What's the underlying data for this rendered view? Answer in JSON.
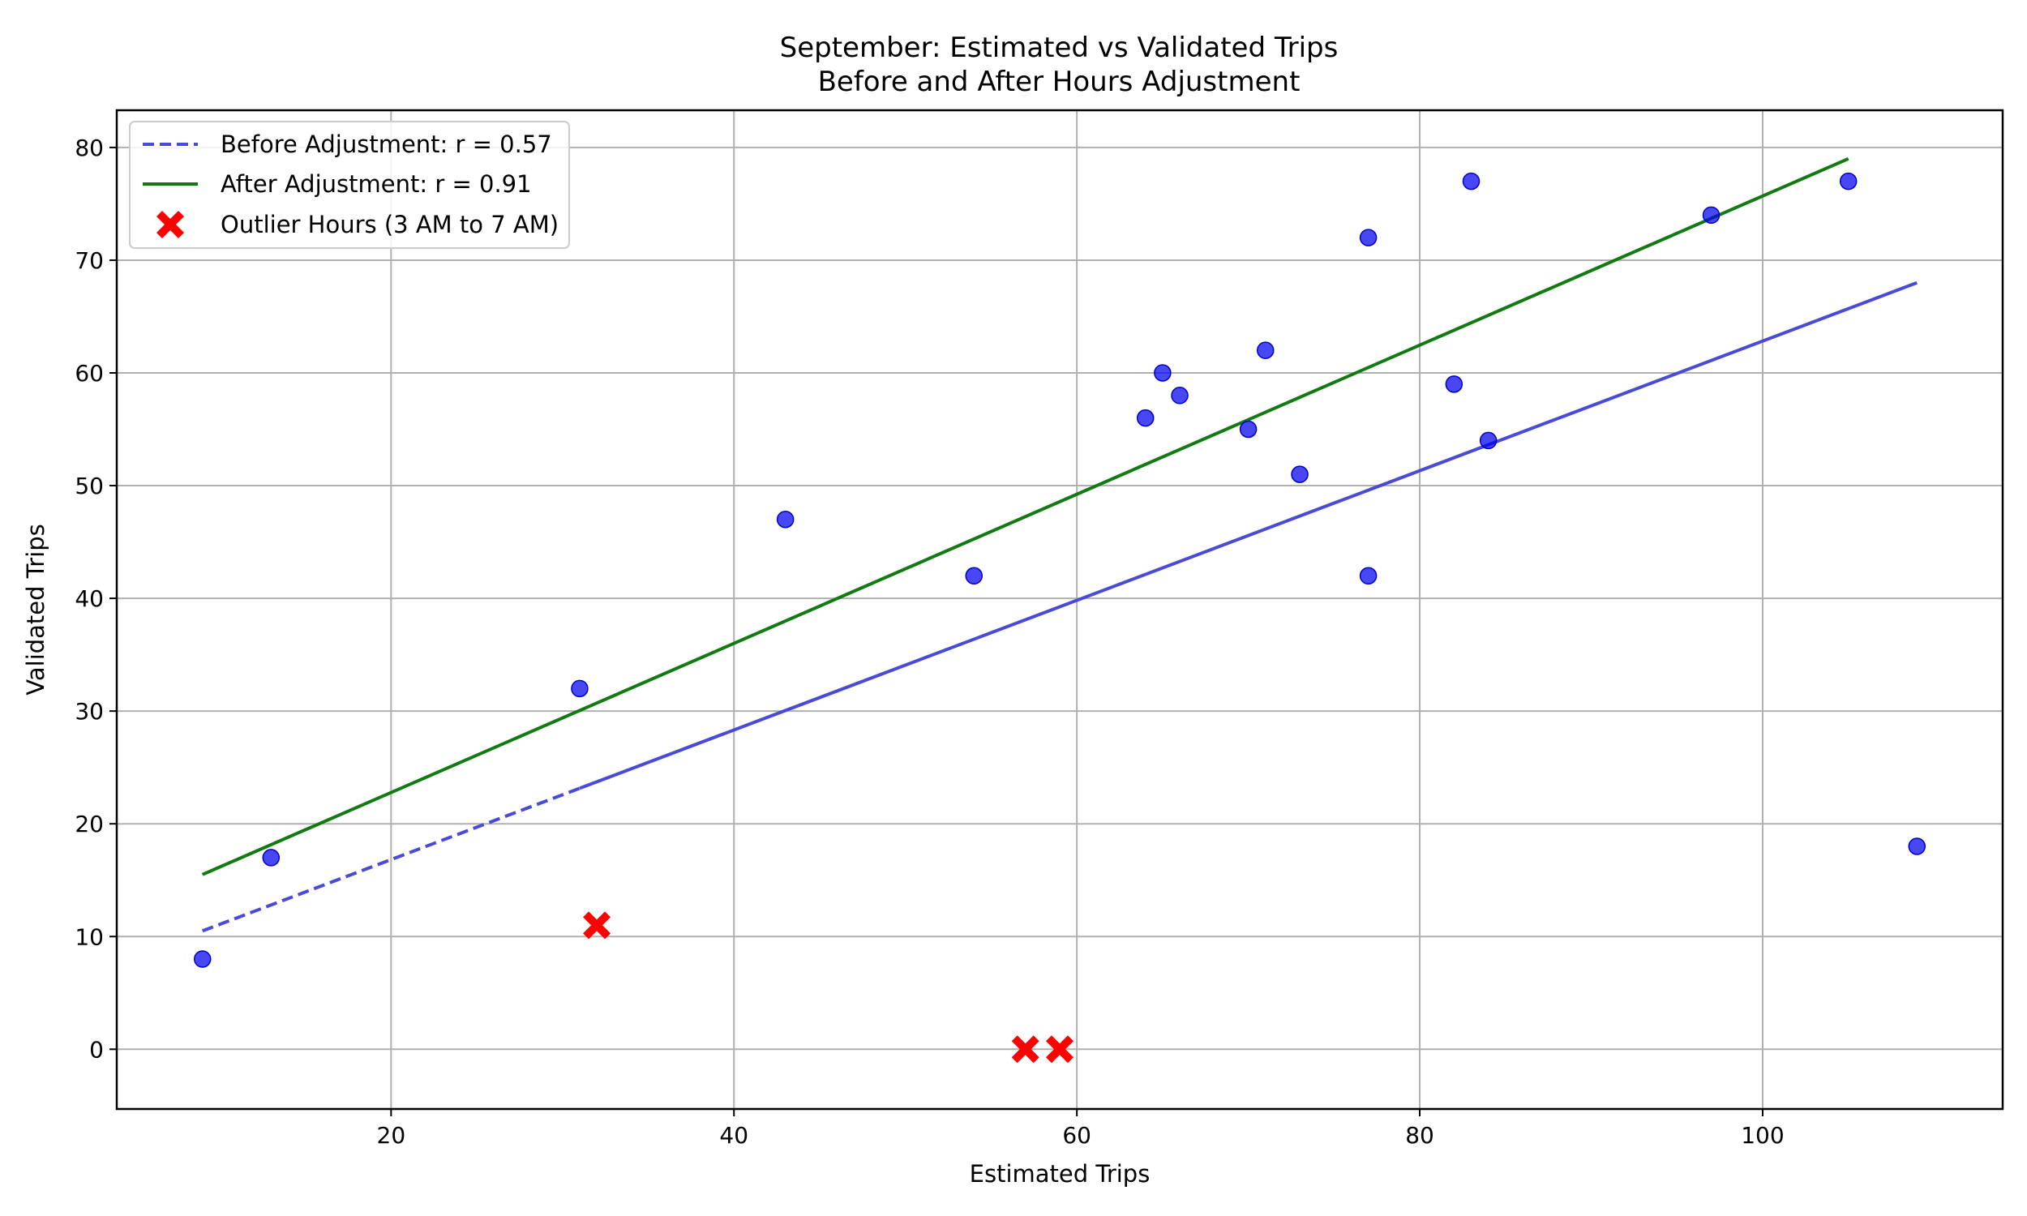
{
  "chart_data": {
    "type": "scatter",
    "title": "September: Estimated vs Validated Trips",
    "subtitle": "Before and After Hours Adjustment",
    "xlabel": "Estimated Trips",
    "ylabel": "Validated Trips",
    "xlim": [
      4,
      114
    ],
    "ylim": [
      -5.3,
      83.3
    ],
    "xticks": [
      20,
      40,
      60,
      80,
      100
    ],
    "yticks": [
      0,
      10,
      20,
      30,
      40,
      50,
      60,
      70,
      80
    ],
    "grid": true,
    "legend_position": "top-left",
    "colors": {
      "points": "#0000ee",
      "outliers": "#ff0000",
      "before_line": "#4a4ad8",
      "after_line": "#117a11"
    },
    "points": {
      "x": [
        9,
        13,
        31,
        43,
        54,
        64,
        65,
        66,
        70,
        71,
        73,
        77,
        77,
        82,
        83,
        84,
        97,
        105,
        109
      ],
      "y": [
        8,
        17,
        32,
        47,
        42,
        56,
        60,
        58,
        55,
        62,
        51,
        72,
        42,
        59,
        77,
        54,
        74,
        77,
        18
      ]
    },
    "outliers": {
      "x": [
        32,
        57,
        59
      ],
      "y": [
        11,
        0,
        0
      ]
    },
    "lines": [
      {
        "label": "Before Adjustment: r = 0.57",
        "style": "dashed-then-solid",
        "x": [
          9,
          109
        ],
        "y": [
          10.5,
          68
        ]
      },
      {
        "label": "After Adjustment: r = 0.91",
        "style": "solid",
        "x": [
          9,
          105
        ],
        "y": [
          15.5,
          79
        ]
      }
    ],
    "legend": [
      {
        "label": "Before Adjustment: r = 0.57",
        "symbol": "dashed-line"
      },
      {
        "label": "After Adjustment: r = 0.91",
        "symbol": "solid-line"
      },
      {
        "label": "Outlier Hours (3 AM to 7 AM)",
        "symbol": "x-marker"
      }
    ]
  }
}
